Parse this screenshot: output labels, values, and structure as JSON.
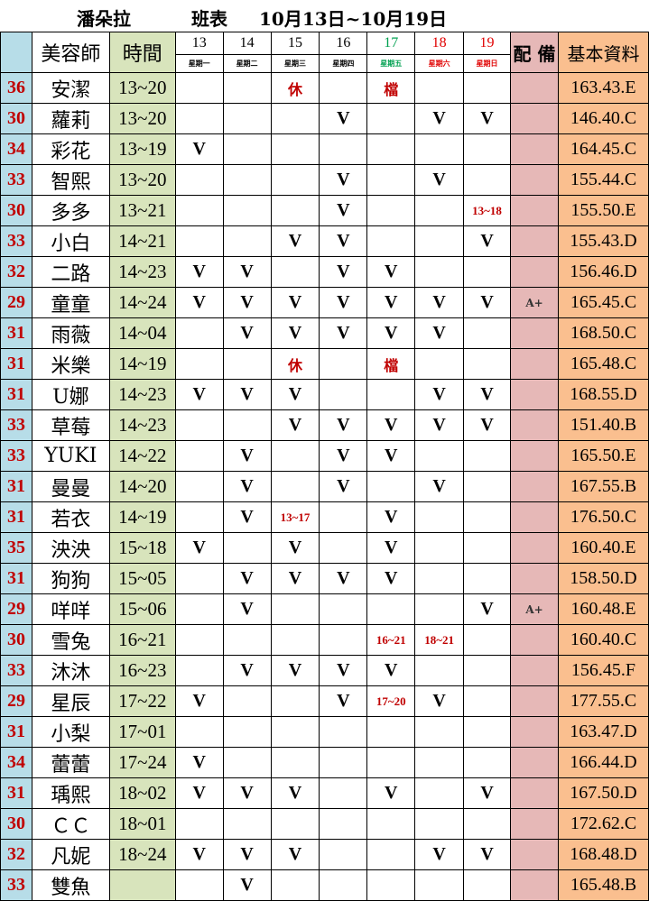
{
  "title": {
    "store": "潘朵拉",
    "label": "班表",
    "range": "10月13日~10月19日"
  },
  "header": {
    "stylist": "美容師",
    "time": "時間",
    "equip": "配 備",
    "info": "基本資料",
    "days": [
      {
        "d": "13",
        "w": "星期一",
        "c": "#000000"
      },
      {
        "d": "14",
        "w": "星期二",
        "c": "#000000"
      },
      {
        "d": "15",
        "w": "星期三",
        "c": "#000000"
      },
      {
        "d": "16",
        "w": "星期四",
        "c": "#000000"
      },
      {
        "d": "17",
        "w": "星期五",
        "c": "#00a050"
      },
      {
        "d": "18",
        "w": "星期六",
        "c": "#e00000"
      },
      {
        "d": "19",
        "w": "星期日",
        "c": "#e00000"
      }
    ]
  },
  "colors": {
    "num_bg": "#b7dde8",
    "time_bg": "#d8e4bc",
    "equip_bg": "#e6b8b7",
    "info_bg": "#fabf8f",
    "note_red": "#c00000"
  },
  "rows": [
    {
      "n": "36",
      "name": "安潔",
      "time": "13~20",
      "days": [
        "",
        "",
        "休",
        "",
        "檔",
        "",
        ""
      ],
      "eq": "",
      "info": "163.43.E"
    },
    {
      "n": "30",
      "name": "蘿莉",
      "time": "13~20",
      "days": [
        "",
        "",
        "",
        "V",
        "",
        "V",
        "V"
      ],
      "eq": "",
      "info": "146.40.C"
    },
    {
      "n": "34",
      "name": "彩花",
      "time": "13~19",
      "days": [
        "V",
        "",
        "",
        "",
        "",
        "",
        ""
      ],
      "eq": "",
      "info": "164.45.C"
    },
    {
      "n": "33",
      "name": "智熙",
      "time": "13~20",
      "days": [
        "",
        "",
        "",
        "V",
        "",
        "V",
        ""
      ],
      "eq": "",
      "info": "155.44.C"
    },
    {
      "n": "30",
      "name": "多多",
      "time": "13~21",
      "days": [
        "",
        "",
        "",
        "V",
        "",
        "",
        "13~18"
      ],
      "eq": "",
      "info": "155.50.E"
    },
    {
      "n": "33",
      "name": "小白",
      "time": "14~21",
      "days": [
        "",
        "",
        "V",
        "V",
        "",
        "",
        "V"
      ],
      "eq": "",
      "info": "155.43.D"
    },
    {
      "n": "32",
      "name": "二路",
      "time": "14~23",
      "days": [
        "V",
        "V",
        "",
        "V",
        "V",
        "",
        ""
      ],
      "eq": "",
      "info": "156.46.D"
    },
    {
      "n": "29",
      "name": "童童",
      "time": "14~24",
      "days": [
        "V",
        "V",
        "V",
        "V",
        "V",
        "V",
        "V"
      ],
      "eq": "A+",
      "info": "165.45.C"
    },
    {
      "n": "31",
      "name": "雨薇",
      "time": "14~04",
      "days": [
        "",
        "V",
        "V",
        "V",
        "V",
        "V",
        ""
      ],
      "eq": "",
      "info": "168.50.C"
    },
    {
      "n": "31",
      "name": "米樂",
      "time": "14~19",
      "days": [
        "",
        "",
        "休",
        "",
        "檔",
        "",
        ""
      ],
      "eq": "",
      "info": "165.48.C"
    },
    {
      "n": "31",
      "name": "U娜",
      "time": "14~23",
      "days": [
        "V",
        "V",
        "V",
        "",
        "",
        "V",
        "V"
      ],
      "eq": "",
      "info": "168.55.D"
    },
    {
      "n": "33",
      "name": "草莓",
      "time": "14~23",
      "days": [
        "",
        "",
        "V",
        "V",
        "V",
        "V",
        "V"
      ],
      "eq": "",
      "info": "151.40.B"
    },
    {
      "n": "33",
      "name": "YUKI",
      "time": "14~22",
      "days": [
        "",
        "V",
        "",
        "V",
        "V",
        "",
        ""
      ],
      "eq": "",
      "info": "165.50.E"
    },
    {
      "n": "31",
      "name": "曼曼",
      "time": "14~20",
      "days": [
        "",
        "V",
        "",
        "V",
        "",
        "V",
        ""
      ],
      "eq": "",
      "info": "167.55.B"
    },
    {
      "n": "31",
      "name": "若衣",
      "time": "14~19",
      "days": [
        "",
        "V",
        "13~17",
        "",
        "V",
        "",
        ""
      ],
      "eq": "",
      "info": "176.50.C"
    },
    {
      "n": "35",
      "name": "泱泱",
      "time": "15~18",
      "days": [
        "V",
        "",
        "V",
        "",
        "V",
        "",
        ""
      ],
      "eq": "",
      "info": "160.40.E"
    },
    {
      "n": "31",
      "name": "狗狗",
      "time": "15~05",
      "days": [
        "",
        "V",
        "V",
        "V",
        "V",
        "",
        ""
      ],
      "eq": "",
      "info": "158.50.D"
    },
    {
      "n": "29",
      "name": "咩咩",
      "time": "15~06",
      "days": [
        "",
        "V",
        "",
        "",
        "",
        "",
        "V"
      ],
      "eq": "A+",
      "info": "160.48.E"
    },
    {
      "n": "30",
      "name": "雪兔",
      "time": "16~21",
      "days": [
        "",
        "",
        "",
        "",
        "16~21",
        "18~21",
        ""
      ],
      "eq": "",
      "info": "160.40.C"
    },
    {
      "n": "33",
      "name": "沐沐",
      "time": "16~23",
      "days": [
        "",
        "V",
        "V",
        "V",
        "V",
        "",
        ""
      ],
      "eq": "",
      "info": "156.45.F"
    },
    {
      "n": "29",
      "name": "星辰",
      "time": "17~22",
      "days": [
        "V",
        "",
        "",
        "V",
        "17~20",
        "V",
        ""
      ],
      "eq": "",
      "info": "177.55.C"
    },
    {
      "n": "31",
      "name": "小梨",
      "time": "17~01",
      "days": [
        "",
        "",
        "",
        "",
        "",
        "",
        ""
      ],
      "eq": "",
      "info": "163.47.D"
    },
    {
      "n": "34",
      "name": "蕾蕾",
      "time": "17~24",
      "days": [
        "V",
        "",
        "",
        "",
        "",
        "",
        ""
      ],
      "eq": "",
      "info": "166.44.D"
    },
    {
      "n": "31",
      "name": "瑀熙",
      "time": "18~02",
      "days": [
        "V",
        "V",
        "V",
        "",
        "V",
        "",
        "V"
      ],
      "eq": "",
      "info": "167.50.D"
    },
    {
      "n": "30",
      "name": "ＣＣ",
      "time": "18~01",
      "days": [
        "",
        "",
        "",
        "",
        "",
        "",
        ""
      ],
      "eq": "",
      "info": "172.62.C"
    },
    {
      "n": "32",
      "name": "凡妮",
      "time": "18~24",
      "days": [
        "V",
        "V",
        "V",
        "",
        "",
        "V",
        "V"
      ],
      "eq": "",
      "info": "168.48.D"
    },
    {
      "n": "33",
      "name": "雙魚",
      "time": "",
      "days": [
        "",
        "V",
        "",
        "",
        "",
        "",
        ""
      ],
      "eq": "",
      "info": "165.48.B"
    }
  ]
}
